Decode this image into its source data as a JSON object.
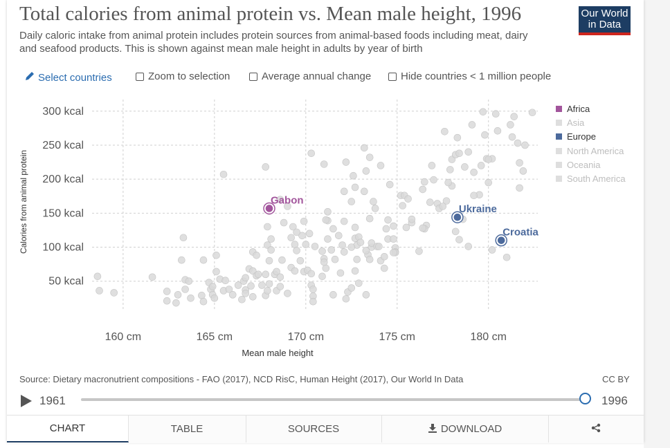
{
  "header": {
    "title": "Total calories from animal protein vs. Mean male height, 1996",
    "subtitle": "Daily caloric intake from animal protein includes protein sources from animal-based foods including meat, dairy and seafood products. This is shown against mean male height in adults by year of birth",
    "logo_line1": "Our World",
    "logo_line2": "in Data"
  },
  "controls": {
    "select_countries": "Select countries",
    "zoom": "Zoom to selection",
    "average": "Average annual change",
    "hide": "Hide countries < 1 million people"
  },
  "colors": {
    "africa": "#a2559c",
    "europe": "#4c6a9c",
    "muted": "#dedede",
    "point": "#d9d9d9",
    "point_stroke": "#c4c4c4",
    "accent": "#2a6cb0"
  },
  "chart_data": {
    "type": "scatter",
    "title": "Total calories from animal protein vs. Mean male height, 1996",
    "xlabel": "Mean male height",
    "ylabel": "Calories from animal protein",
    "xlim": [
      158.3,
      182.7
    ],
    "ylim": [
      8,
      313
    ],
    "xticks": [
      {
        "v": 160,
        "label": "160 cm"
      },
      {
        "v": 165,
        "label": "165 cm"
      },
      {
        "v": 170,
        "label": "170 cm"
      },
      {
        "v": 175,
        "label": "175 cm"
      },
      {
        "v": 180,
        "label": "180 cm"
      }
    ],
    "yticks": [
      {
        "v": 50,
        "label": "50 kcal"
      },
      {
        "v": 100,
        "label": "100 kcal"
      },
      {
        "v": 150,
        "label": "150 kcal"
      },
      {
        "v": 200,
        "label": "200 kcal"
      },
      {
        "v": 250,
        "label": "250 kcal"
      },
      {
        "v": 300,
        "label": "300 kcal"
      }
    ],
    "grid": true,
    "legend_position": "right",
    "legend": [
      {
        "name": "Africa",
        "color": "#a2559c",
        "active": true
      },
      {
        "name": "Asia",
        "color": "#dedede",
        "active": false
      },
      {
        "name": "Europe",
        "color": "#4c6a9c",
        "active": true
      },
      {
        "name": "North America",
        "color": "#dedede",
        "active": false
      },
      {
        "name": "Oceania",
        "color": "#dedede",
        "active": false
      },
      {
        "name": "South America",
        "color": "#dedede",
        "active": false
      }
    ],
    "highlighted": [
      {
        "name": "Gabon",
        "x": 168.0,
        "y": 157,
        "color": "#a2559c"
      },
      {
        "name": "Ukraine",
        "x": 178.3,
        "y": 144,
        "color": "#4c6a9c"
      },
      {
        "name": "Croatia",
        "x": 180.7,
        "y": 110,
        "color": "#4c6a9c"
      }
    ],
    "points": [
      [
        158.6,
        57
      ],
      [
        158.7,
        36
      ],
      [
        159.5,
        33
      ],
      [
        161.6,
        56
      ],
      [
        162.4,
        35
      ],
      [
        162.4,
        21
      ],
      [
        162.9,
        18
      ],
      [
        163.0,
        30
      ],
      [
        163.2,
        81
      ],
      [
        163.3,
        114
      ],
      [
        163.4,
        52
      ],
      [
        163.4,
        38
      ],
      [
        163.7,
        25
      ],
      [
        163.6,
        50
      ],
      [
        164.3,
        29
      ],
      [
        164.4,
        20
      ],
      [
        164.4,
        81
      ],
      [
        164.7,
        48
      ],
      [
        164.8,
        38
      ],
      [
        164.9,
        42
      ],
      [
        164.9,
        30
      ],
      [
        165.0,
        25
      ],
      [
        165.1,
        88
      ],
      [
        165.1,
        64
      ],
      [
        165.3,
        53
      ],
      [
        165.5,
        36
      ],
      [
        165.6,
        51
      ],
      [
        165.5,
        207
      ],
      [
        165.8,
        38
      ],
      [
        166.0,
        30
      ],
      [
        166.3,
        44
      ],
      [
        166.5,
        23
      ],
      [
        166.6,
        50
      ],
      [
        166.7,
        55
      ],
      [
        166.7,
        37
      ],
      [
        166.7,
        32
      ],
      [
        166.9,
        68
      ],
      [
        167.0,
        43
      ],
      [
        167.1,
        27
      ],
      [
        167.1,
        65
      ],
      [
        167.1,
        93
      ],
      [
        167.3,
        58
      ],
      [
        167.3,
        88
      ],
      [
        167.4,
        60
      ],
      [
        167.6,
        44
      ],
      [
        167.8,
        29
      ],
      [
        167.8,
        60
      ],
      [
        167.9,
        36
      ],
      [
        167.9,
        103
      ],
      [
        168.0,
        46
      ],
      [
        168.0,
        80
      ],
      [
        168.1,
        96
      ],
      [
        168.1,
        112
      ],
      [
        168.3,
        60
      ],
      [
        168.4,
        36
      ],
      [
        168.4,
        64
      ],
      [
        168.6,
        42
      ],
      [
        168.7,
        81
      ],
      [
        168.6,
        56
      ],
      [
        168.0,
        153
      ],
      [
        167.8,
        218
      ],
      [
        168.6,
        170
      ],
      [
        168.8,
        136
      ],
      [
        169.0,
        32
      ],
      [
        169.0,
        160
      ],
      [
        169.2,
        114
      ],
      [
        169.2,
        70
      ],
      [
        169.3,
        130
      ],
      [
        169.4,
        65
      ],
      [
        169.4,
        104
      ],
      [
        169.7,
        80
      ],
      [
        169.9,
        64
      ],
      [
        169.9,
        138
      ],
      [
        170.1,
        66
      ],
      [
        170.3,
        61
      ],
      [
        170.3,
        44
      ],
      [
        170.4,
        28
      ],
      [
        170.4,
        38
      ],
      [
        170.4,
        20
      ],
      [
        170.5,
        101
      ],
      [
        171.0,
        83
      ],
      [
        171.2,
        139
      ],
      [
        171.6,
        82
      ],
      [
        170.9,
        94
      ],
      [
        171.1,
        69
      ],
      [
        171.1,
        140
      ],
      [
        171.5,
        30
      ],
      [
        171.8,
        117
      ],
      [
        172.0,
        103
      ],
      [
        172.1,
        138
      ],
      [
        172.1,
        93
      ],
      [
        172.3,
        34
      ],
      [
        172.7,
        113
      ],
      [
        172.8,
        103
      ],
      [
        172.8,
        82
      ],
      [
        172.7,
        65
      ],
      [
        172.9,
        115
      ],
      [
        173.2,
        182
      ],
      [
        173.3,
        30
      ],
      [
        173.4,
        89
      ],
      [
        173.5,
        82
      ],
      [
        173.6,
        100
      ],
      [
        173.6,
        106
      ],
      [
        173.8,
        157
      ],
      [
        173.7,
        167
      ],
      [
        174.1,
        80
      ],
      [
        174.3,
        86
      ],
      [
        174.3,
        69
      ],
      [
        174.5,
        112
      ],
      [
        174.5,
        140
      ],
      [
        174.8,
        112
      ],
      [
        174.8,
        131
      ],
      [
        174.9,
        99
      ],
      [
        174.9,
        93
      ],
      [
        175.2,
        176
      ],
      [
        175.4,
        176
      ],
      [
        175.6,
        171
      ],
      [
        175.8,
        136
      ],
      [
        175.8,
        141
      ],
      [
        176.2,
        94
      ],
      [
        176.5,
        196
      ],
      [
        176.6,
        132
      ],
      [
        177.0,
        199
      ],
      [
        177.2,
        164
      ],
      [
        177.3,
        157
      ],
      [
        177.6,
        270
      ],
      [
        177.9,
        214
      ],
      [
        178.0,
        229
      ],
      [
        178.0,
        190
      ],
      [
        178.2,
        236
      ],
      [
        178.3,
        261
      ],
      [
        178.4,
        238
      ],
      [
        178.7,
        218
      ],
      [
        178.9,
        240
      ],
      [
        179.1,
        280
      ],
      [
        179.5,
        177
      ],
      [
        179.6,
        220
      ],
      [
        179.8,
        265
      ],
      [
        179.9,
        230
      ],
      [
        180.2,
        230
      ],
      [
        179.7,
        299
      ],
      [
        180.0,
        229
      ],
      [
        180.4,
        296
      ],
      [
        181.3,
        262
      ],
      [
        181.4,
        292
      ],
      [
        181.6,
        253
      ],
      [
        181.7,
        224
      ],
      [
        181.9,
        212
      ],
      [
        181.7,
        187
      ],
      [
        182.4,
        298
      ],
      [
        179.2,
        210
      ],
      [
        178.2,
        123
      ],
      [
        178.4,
        111
      ],
      [
        176.5,
        127
      ],
      [
        170.0,
        104
      ],
      [
        169.5,
        95
      ],
      [
        177.8,
        195
      ],
      [
        178.9,
        101
      ],
      [
        180.2,
        96
      ],
      [
        181.0,
        85
      ],
      [
        178.6,
        141
      ],
      [
        176.8,
        166
      ],
      [
        169.8,
        117
      ],
      [
        169.5,
        122
      ],
      [
        171.2,
        152
      ],
      [
        173.9,
        101
      ],
      [
        172.5,
        167
      ],
      [
        171.5,
        127
      ],
      [
        170.2,
        120
      ],
      [
        167.9,
        130
      ],
      [
        170.3,
        238
      ],
      [
        171.0,
        222
      ],
      [
        172.2,
        225
      ],
      [
        172.6,
        205
      ],
      [
        173.3,
        212
      ],
      [
        173.5,
        232
      ],
      [
        173.2,
        246
      ],
      [
        174.1,
        220
      ],
      [
        172.7,
        188
      ],
      [
        175.5,
        129
      ],
      [
        176.4,
        128
      ],
      [
        174.9,
        92
      ],
      [
        176.9,
        220
      ],
      [
        177.7,
        168
      ],
      [
        180.5,
        271
      ],
      [
        177.5,
        160
      ],
      [
        181.2,
        280
      ],
      [
        182.0,
        250
      ],
      [
        179.2,
        176
      ],
      [
        180.0,
        195
      ],
      [
        176.4,
        185
      ],
      [
        175.3,
        161
      ],
      [
        174.6,
        192
      ],
      [
        172.1,
        182
      ],
      [
        171.2,
        112
      ],
      [
        170.9,
        57
      ],
      [
        171.9,
        62
      ],
      [
        172.5,
        100
      ],
      [
        173.0,
        107
      ],
      [
        173.3,
        95
      ],
      [
        172.9,
        47
      ],
      [
        172.5,
        40
      ],
      [
        172.2,
        24
      ],
      [
        171.0,
        78
      ],
      [
        174.0,
        101
      ],
      [
        174.4,
        127
      ],
      [
        174.8,
        92
      ],
      [
        173.5,
        142
      ],
      [
        172.7,
        129
      ],
      [
        171.4,
        96
      ]
    ]
  },
  "footer": {
    "source": "Source: Dietary macronutrient compositions - FAO (2017), NCD RisC, Human Height (2017), Our World In Data",
    "license": "CC BY",
    "year_start": "1961",
    "year_end": "1996",
    "progress": 1.0
  },
  "tabs": [
    {
      "label": "CHART",
      "active": true
    },
    {
      "label": "TABLE",
      "active": false
    },
    {
      "label": "SOURCES",
      "active": false
    },
    {
      "label": "DOWNLOAD",
      "active": false
    },
    {
      "label": "",
      "active": false
    }
  ]
}
